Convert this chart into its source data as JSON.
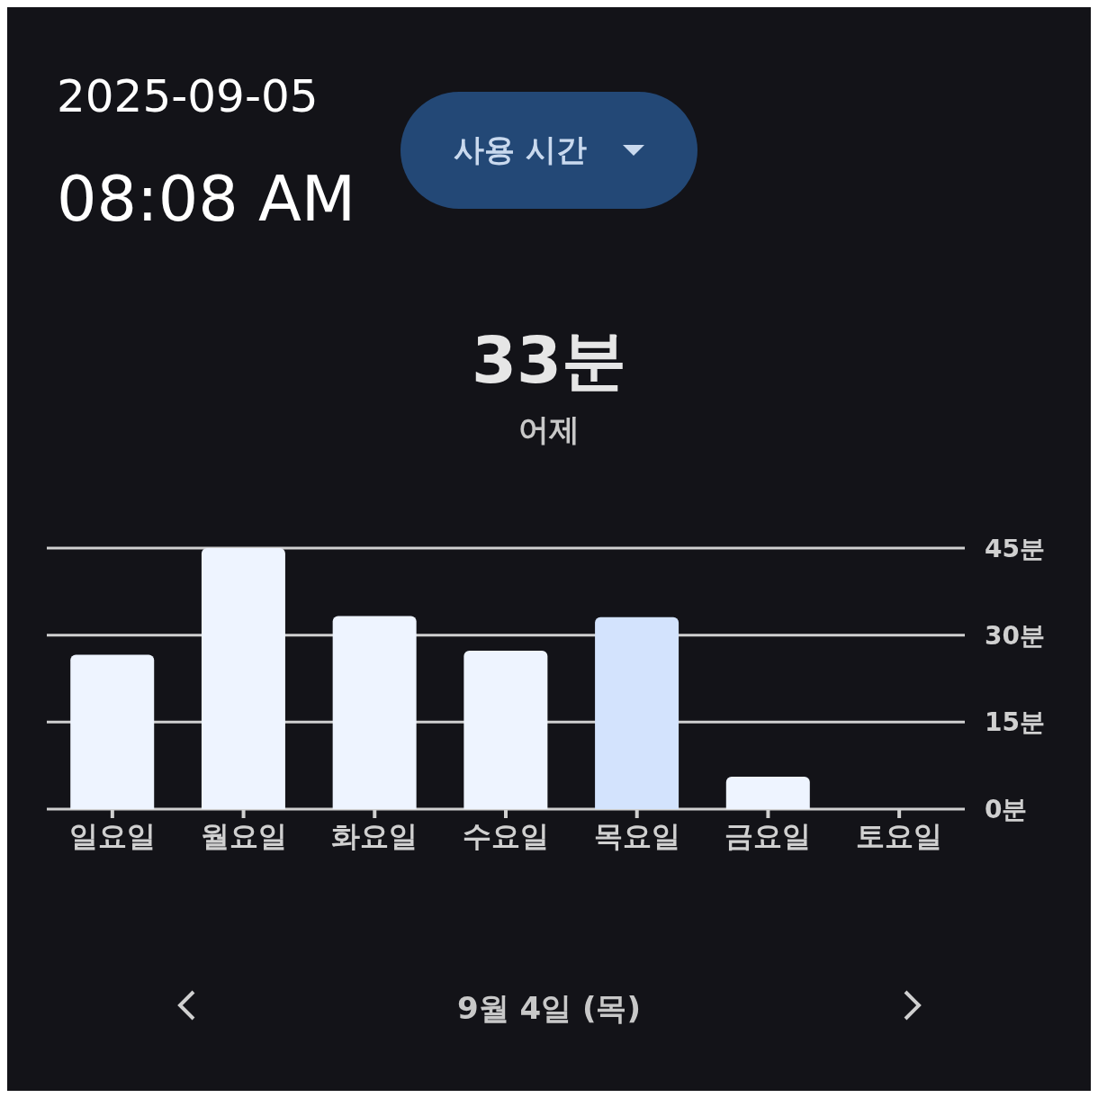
{
  "chart_data": {
    "type": "bar",
    "title": "33분",
    "subtitle": "어제",
    "categories": [
      "일요일",
      "월요일",
      "화요일",
      "수요일",
      "목요일",
      "금요일",
      "토요일"
    ],
    "values": [
      26.6,
      45,
      33.3,
      27.3,
      33.1,
      5.6,
      0
    ],
    "colors": [
      "#eef4ff",
      "#eef4ff",
      "#eef4ff",
      "#eef4ff",
      "#d3e3fd",
      "#eef4ff",
      "#eef4ff"
    ],
    "ylim": [
      0,
      45
    ],
    "yticks": [
      {
        "value": 0,
        "label": "0분"
      },
      {
        "value": 15,
        "label": "15분"
      },
      {
        "value": 30,
        "label": "30분"
      },
      {
        "value": 45,
        "label": "45분"
      }
    ],
    "grid": "y",
    "annotations": [
      "2025-09-05",
      "08:08 AM",
      "사용 시간",
      "9월 4일 (목)"
    ]
  }
}
